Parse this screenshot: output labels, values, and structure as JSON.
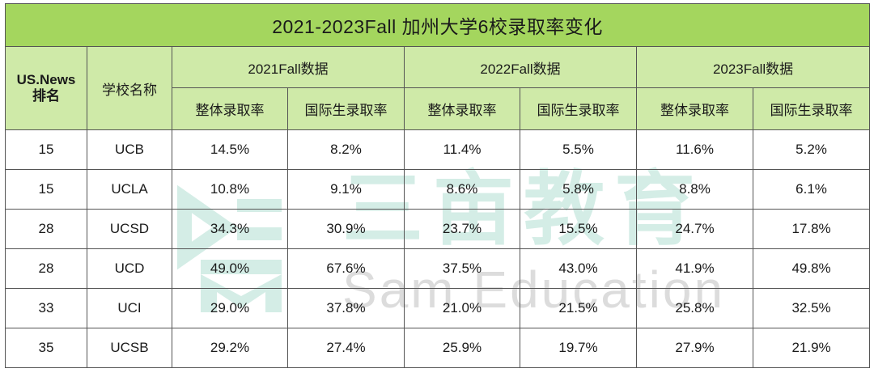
{
  "title": "2021-2023Fall 加州大学6校录取率变化",
  "headers": {
    "rank": "US.News\n排名",
    "rank_line1": "US.News",
    "rank_line2": "排名",
    "school": "学校名称",
    "years": [
      "2021Fall数据",
      "2022Fall数据",
      "2023Fall数据"
    ],
    "overall": "整体录取率",
    "international": "国际生录取率"
  },
  "rows": [
    {
      "rank": "15",
      "school": "UCB",
      "values": [
        "14.5%",
        "8.2%",
        "11.4%",
        "5.5%",
        "11.6%",
        "5.2%"
      ]
    },
    {
      "rank": "15",
      "school": "UCLA",
      "values": [
        "10.8%",
        "9.1%",
        "8.6%",
        "5.8%",
        "8.8%",
        "6.1%"
      ]
    },
    {
      "rank": "28",
      "school": "UCSD",
      "values": [
        "34.3%",
        "30.9%",
        "23.7%",
        "15.5%",
        "24.7%",
        "17.8%"
      ]
    },
    {
      "rank": "28",
      "school": "UCD",
      "values": [
        "49.0%",
        "67.6%",
        "37.5%",
        "43.0%",
        "41.9%",
        "49.8%"
      ]
    },
    {
      "rank": "33",
      "school": "UCI",
      "values": [
        "29.0%",
        "37.8%",
        "21.0%",
        "21.5%",
        "25.8%",
        "32.5%"
      ]
    },
    {
      "rank": "35",
      "school": "UCSB",
      "values": [
        "29.2%",
        "27.4%",
        "25.9%",
        "19.7%",
        "27.9%",
        "21.9%"
      ]
    }
  ],
  "watermark": {
    "cn": "三亩教育",
    "en": "Sam Education",
    "icon": "sam-education-logo-icon"
  },
  "colors": {
    "title_bg": "#a4d65e",
    "header_bg": "#cfeaa8",
    "border": "#555555",
    "watermark": "#d4ede6"
  }
}
